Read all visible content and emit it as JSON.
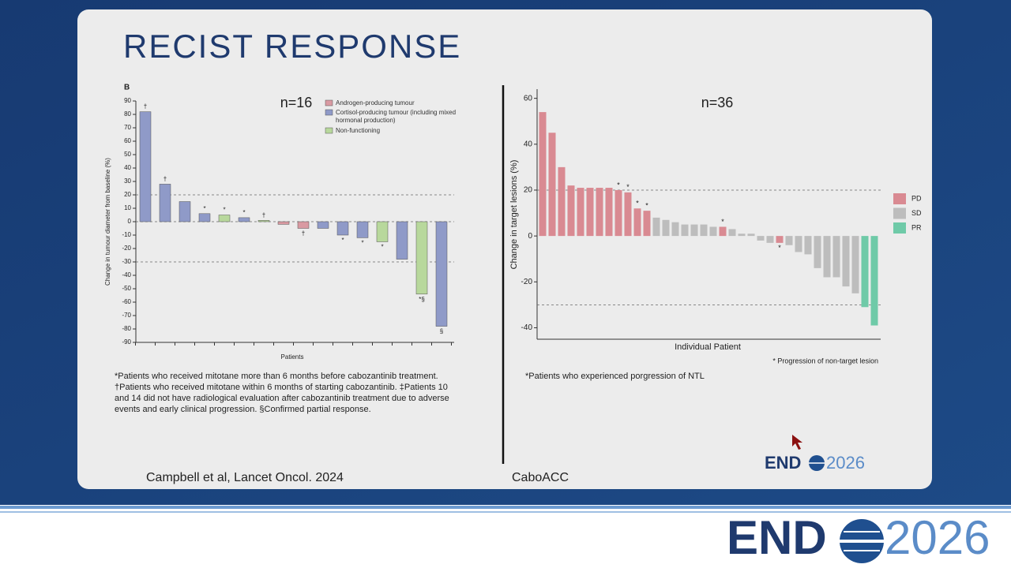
{
  "slide": {
    "title": "RECIST RESPONSE",
    "left_footnote": [
      "*Patients who received mitotane more than 6 months before cabozantinib treatment.",
      "†Patients who received mitotane within 6 months of starting cabozantinib. ‡Patients 10",
      "and 14 did not have radiological evaluation after cabozantinib treatment due to adverse",
      "events and early clinical progression. §Confirmed partial response."
    ],
    "right_footnote": "*Patients who experienced porgression of NTL",
    "left_source": "Campbell et al, Lancet Oncol. 2024",
    "right_source": "CaboACC",
    "logo": {
      "left": "END",
      "right": "2026"
    }
  },
  "chart_data": [
    {
      "type": "bar",
      "panel": "B",
      "title": "n=16",
      "x_label": "Patients",
      "y_label": "Change in tumour diameter from baseline (%)",
      "ylim": [
        -90,
        90
      ],
      "yticks": [
        -90,
        -80,
        -70,
        -60,
        -50,
        -40,
        -30,
        -20,
        -10,
        0,
        10,
        20,
        30,
        40,
        50,
        60,
        70,
        80,
        90
      ],
      "reference_lines": [
        20,
        0,
        -30
      ],
      "series": [
        {
          "name": "Androgen-producing tumour",
          "color": "#d99aa2",
          "values": [
            null,
            null,
            null,
            null,
            null,
            null,
            null,
            -2,
            -5,
            null,
            null,
            null,
            null,
            null,
            null,
            null
          ]
        },
        {
          "name": "Cortisol-producing tumour (including mixed hormonal production)",
          "color": "#8f9ac8",
          "values": [
            82,
            28,
            15,
            6,
            null,
            3,
            null,
            null,
            null,
            -5,
            -10,
            -12,
            null,
            -28,
            null,
            -78
          ]
        },
        {
          "name": "Non-functioning",
          "color": "#b8d89c",
          "values": [
            null,
            null,
            null,
            null,
            5,
            null,
            1,
            null,
            null,
            null,
            null,
            null,
            -15,
            null,
            -54,
            null
          ]
        }
      ],
      "annotations": [
        "†",
        "†",
        null,
        "*",
        "*",
        "*",
        "†",
        null,
        "†",
        null,
        "*",
        "*",
        "*",
        null,
        "*§",
        "§"
      ]
    },
    {
      "type": "bar",
      "title": "n=36",
      "x_label": "Individual Patient",
      "y_label": "Change in target lesions (%)",
      "note": "* Progression of non-target lesion",
      "ylim": [
        -45,
        64
      ],
      "yticks": [
        -40,
        -20,
        0,
        20,
        40,
        60
      ],
      "reference_lines": [
        20,
        -30
      ],
      "legend": "right",
      "series": [
        {
          "name": "PD",
          "color": "#d98a92",
          "values": [
            54,
            45,
            30,
            22,
            21,
            21,
            21,
            21,
            20,
            19,
            12,
            11,
            null,
            null,
            null,
            null,
            null,
            null,
            null,
            4,
            null,
            null,
            null,
            null,
            null,
            -3,
            null,
            null,
            null,
            null,
            null,
            null,
            null,
            null,
            null,
            null
          ]
        },
        {
          "name": "SD",
          "color": "#bdbdbd",
          "values": [
            null,
            null,
            null,
            null,
            null,
            null,
            null,
            null,
            null,
            null,
            null,
            null,
            8,
            7,
            6,
            5,
            5,
            5,
            4,
            null,
            3,
            1,
            1,
            -2,
            -3,
            null,
            -4,
            -7,
            -8,
            -14,
            -18,
            -18,
            -22,
            -25,
            null,
            null
          ]
        },
        {
          "name": "PR",
          "color": "#6fcaa8",
          "values": [
            null,
            null,
            null,
            null,
            null,
            null,
            null,
            null,
            null,
            null,
            null,
            null,
            null,
            null,
            null,
            null,
            null,
            null,
            null,
            null,
            null,
            null,
            null,
            null,
            null,
            null,
            null,
            null,
            null,
            null,
            null,
            null,
            null,
            null,
            -31,
            -39
          ]
        }
      ],
      "annotations": [
        null,
        null,
        null,
        null,
        null,
        null,
        null,
        null,
        "*",
        "*",
        "*",
        "*",
        null,
        null,
        null,
        null,
        null,
        null,
        null,
        "*",
        null,
        null,
        null,
        null,
        null,
        "*",
        null,
        null,
        null,
        null,
        null,
        null,
        null,
        null,
        null,
        null
      ]
    }
  ]
}
